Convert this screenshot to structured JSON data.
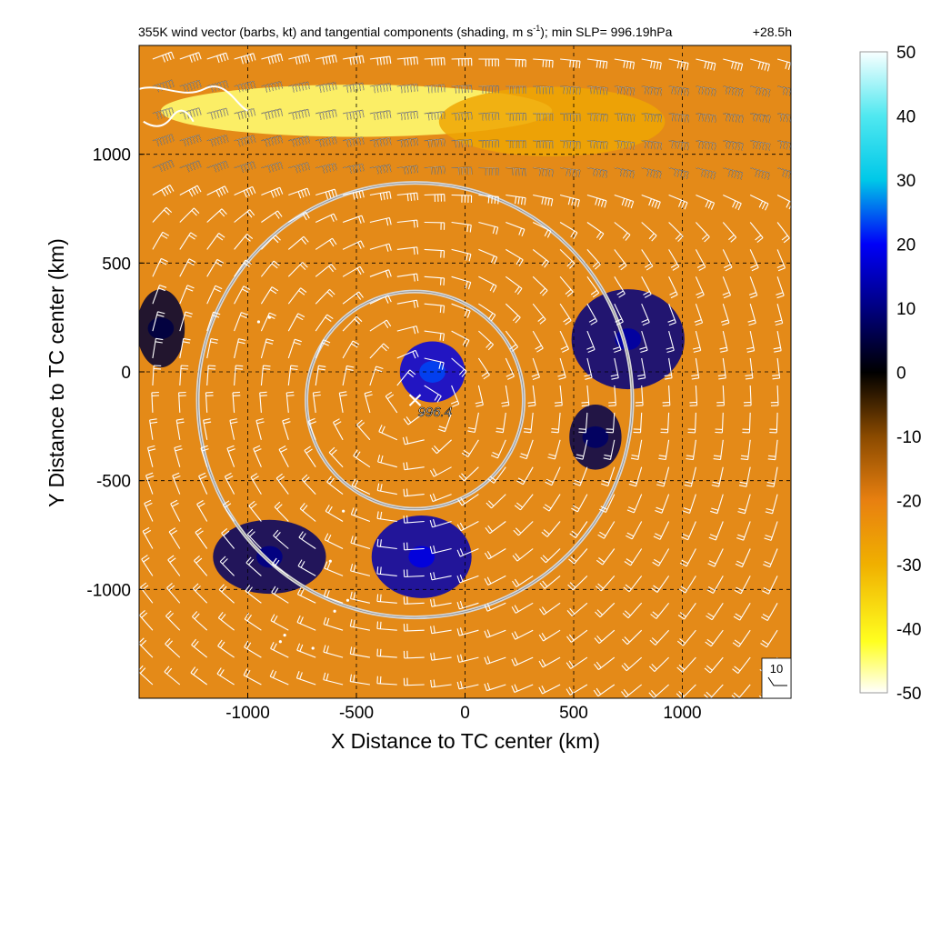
{
  "title": {
    "main": "355K wind vector (barbs, kt) and tangential components (shading, m s",
    "superscript": "-1",
    "rest": "); min SLP= 996.19hPa",
    "time": "+28.5h"
  },
  "center_label": "996.4",
  "reference_barb_label": "10",
  "colors": {
    "frame": "#000000",
    "ring": "#d8d8d8",
    "barb": "#ffffff",
    "grid": "#000000"
  },
  "chart_data": {
    "type": "heatmap",
    "xlabel": "X Distance to TC center (km)",
    "ylabel": "Y Distance to TC center (km)",
    "xlim": [
      -1500,
      1500
    ],
    "ylim": [
      -1500,
      1500
    ],
    "x_ticks": [
      -1000,
      -500,
      0,
      500,
      1000
    ],
    "y_ticks": [
      -1000,
      -500,
      0,
      500,
      1000
    ],
    "grid": true,
    "grid_style": "dashed",
    "colorbar": {
      "min": -50,
      "max": 50,
      "ticks": [
        50,
        40,
        30,
        20,
        10,
        0,
        -10,
        -20,
        -30,
        -40,
        -50
      ],
      "stops": [
        {
          "value": -50,
          "color": "#ffffff"
        },
        {
          "value": -42,
          "color": "#ffff20"
        },
        {
          "value": -30,
          "color": "#f0b000"
        },
        {
          "value": -20,
          "color": "#e88010"
        },
        {
          "value": -10,
          "color": "#8a4a00"
        },
        {
          "value": 0,
          "color": "#000000"
        },
        {
          "value": 10,
          "color": "#000080"
        },
        {
          "value": 20,
          "color": "#0000f8"
        },
        {
          "value": 30,
          "color": "#00c8e8"
        },
        {
          "value": 40,
          "color": "#50e8f0"
        },
        {
          "value": 50,
          "color": "#f8ffff"
        }
      ]
    },
    "field_features": [
      {
        "name": "strong westerly jet band",
        "x": -500,
        "y": 1200,
        "value": -45
      },
      {
        "name": "jet tail",
        "x": 400,
        "y": 1150,
        "value": -28
      },
      {
        "name": "inner positive core",
        "x": -150,
        "y": 0,
        "value": 18
      },
      {
        "name": "south positive lobe",
        "x": -200,
        "y": -850,
        "value": 14
      },
      {
        "name": "southwest positive lobe",
        "x": -900,
        "y": -850,
        "value": 8
      },
      {
        "name": "east positive lobe",
        "x": 750,
        "y": 150,
        "value": 10
      },
      {
        "name": "west positive patch",
        "x": -1400,
        "y": 200,
        "value": 4
      },
      {
        "name": "east-southeast patch",
        "x": 600,
        "y": -300,
        "value": 6
      }
    ],
    "storm_center": {
      "x": -230,
      "y": -130
    },
    "rings_radius_km": [
      500,
      1000
    ],
    "barb_grid_spacing_km": 125
  }
}
